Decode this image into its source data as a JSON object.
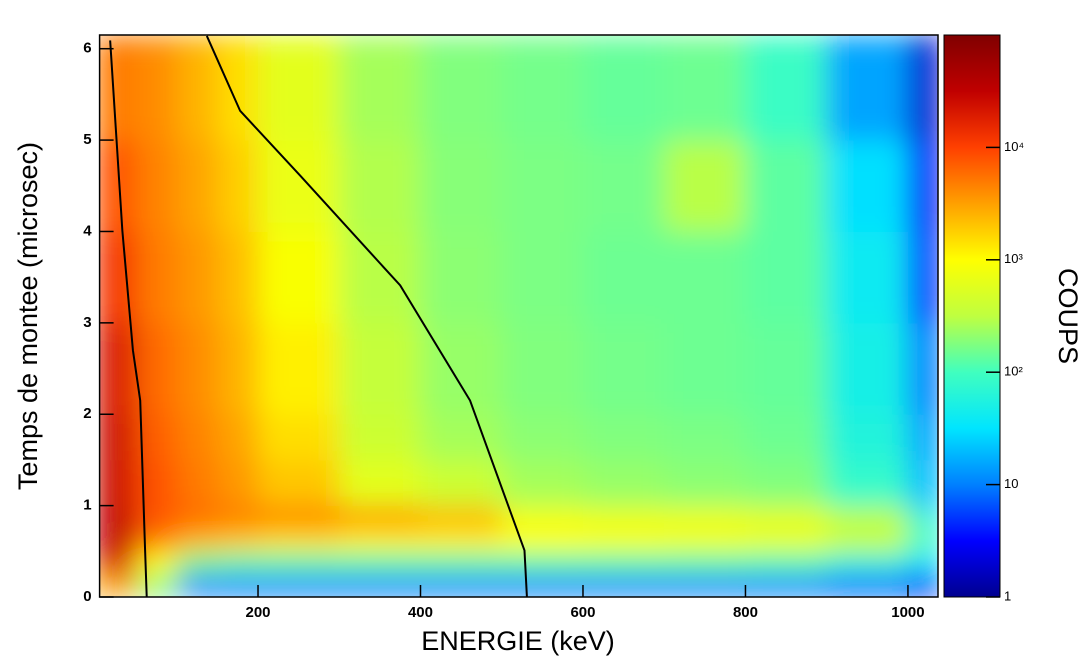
{
  "chart_data": {
    "type": "heatmap",
    "x_label": "ENERGIE (keV)",
    "y_label": "Temps de montee (microsec)",
    "z_label": "COUPS",
    "xlim": [
      5,
      1037
    ],
    "xticks": [
      200,
      400,
      600,
      800,
      1000
    ],
    "ylim": [
      0,
      6.15
    ],
    "yticks": [
      0,
      1,
      2,
      3,
      4,
      5,
      6
    ],
    "zlim": [
      1,
      100000
    ],
    "zlog": true,
    "zticks": [
      1,
      10,
      {
        "value": 100,
        "label": "10²"
      },
      {
        "value": 1000,
        "label": "10³"
      },
      {
        "value": 10000,
        "label": "10⁴"
      }
    ],
    "colormap": [
      "#00008f",
      "#0000ff",
      "#0080ff",
      "#00e5ff",
      "#40ffbf",
      "#bfff40",
      "#ffff00",
      "#ffa000",
      "#ff4000",
      "#c00000",
      "#800000"
    ],
    "xbins": [
      0,
      50,
      100,
      150,
      200,
      300,
      400,
      500,
      600,
      700,
      800,
      900,
      1000,
      1040
    ],
    "ybins": [
      0,
      0.25,
      0.5,
      0.75,
      1,
      1.5,
      2,
      3,
      4,
      5,
      6.15
    ],
    "z": [
      [
        3000,
        200,
        10,
        10,
        10,
        10,
        10,
        10,
        10,
        10,
        10,
        8,
        3
      ],
      [
        20000,
        1000,
        150,
        120,
        120,
        120,
        120,
        120,
        120,
        120,
        110,
        60,
        30
      ],
      [
        30000,
        5000,
        2500,
        2000,
        1500,
        1200,
        1200,
        1000,
        900,
        800,
        700,
        400,
        100
      ],
      [
        30000,
        8000,
        6000,
        5000,
        4500,
        3500,
        2500,
        800,
        700,
        700,
        600,
        300,
        60
      ],
      [
        25000,
        8000,
        5000,
        3500,
        2000,
        600,
        400,
        250,
        220,
        200,
        180,
        80,
        20
      ],
      [
        25000,
        7000,
        4500,
        3000,
        1500,
        400,
        250,
        200,
        180,
        170,
        150,
        60,
        15
      ],
      [
        20000,
        6000,
        4000,
        2500,
        1200,
        350,
        220,
        180,
        160,
        150,
        140,
        50,
        10
      ],
      [
        12000,
        5000,
        3500,
        2200,
        900,
        300,
        200,
        170,
        150,
        150,
        130,
        40,
        5
      ],
      [
        8000,
        4500,
        3000,
        1800,
        700,
        280,
        190,
        170,
        160,
        300,
        130,
        30,
        3
      ],
      [
        5000,
        4000,
        2500,
        1500,
        600,
        250,
        180,
        160,
        140,
        150,
        90,
        15,
        2
      ]
    ],
    "series": [
      {
        "color": "#000000",
        "x": [
          18,
          33,
          46,
          55,
          61,
          63
        ],
        "y": [
          6.09,
          4.01,
          2.7,
          2.15,
          0.51,
          0
        ]
      },
      {
        "color": "#000000",
        "x": [
          137,
          178,
          252,
          375,
          461,
          510,
          528,
          531
        ],
        "y": [
          6.14,
          5.32,
          4.61,
          3.41,
          2.15,
          0.95,
          0.51,
          0
        ]
      }
    ]
  }
}
